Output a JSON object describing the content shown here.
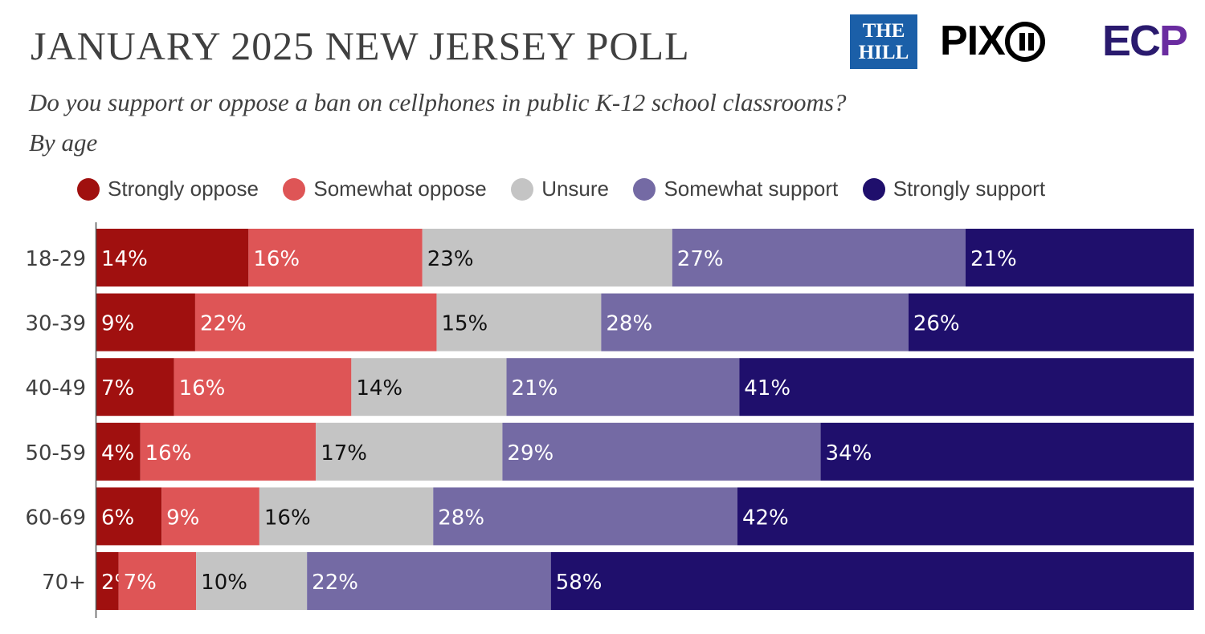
{
  "header": {
    "title": "JANUARY 2025 NEW JERSEY POLL",
    "subtitle": "Do you support or oppose a ban on cellphones in public K-12 school classrooms?",
    "subtitle2": "By age"
  },
  "logos": {
    "hill_line1": "THE",
    "hill_line2": "HILL",
    "pix": "PIX",
    "ecp_main": "EC",
    "ecp_p": "P"
  },
  "colors": {
    "strongly_oppose": "#a0100f",
    "somewhat_oppose": "#de5556",
    "unsure": "#c4c4c4",
    "somewhat_support": "#746aa4",
    "strongly_support": "#1f0f6c"
  },
  "chart_data": {
    "type": "bar",
    "orientation": "horizontal",
    "stacked": true,
    "title": "JANUARY 2025 NEW JERSEY POLL",
    "subtitle": "Do you support or oppose a ban on cellphones in public K-12 school classrooms?",
    "categories": [
      "18-29",
      "30-39",
      "40-49",
      "50-59",
      "60-69",
      "70+"
    ],
    "legend_position": "top",
    "xlim": [
      0,
      100
    ],
    "grid": false,
    "series": [
      {
        "name": "Strongly oppose",
        "color": "#a0100f",
        "text_color": "#ffffff",
        "values": [
          14,
          9,
          7,
          4,
          6,
          2
        ]
      },
      {
        "name": "Somewhat oppose",
        "color": "#de5556",
        "text_color": "#ffffff",
        "values": [
          16,
          22,
          16,
          16,
          9,
          7
        ]
      },
      {
        "name": "Unsure",
        "color": "#c4c4c4",
        "text_color": "#111111",
        "values": [
          23,
          15,
          14,
          17,
          16,
          10
        ]
      },
      {
        "name": "Somewhat support",
        "color": "#746aa4",
        "text_color": "#ffffff",
        "values": [
          27,
          28,
          21,
          29,
          28,
          22
        ]
      },
      {
        "name": "Strongly support",
        "color": "#1f0f6c",
        "text_color": "#ffffff",
        "values": [
          21,
          26,
          41,
          34,
          42,
          58
        ]
      }
    ],
    "value_labels": [
      [
        "14%",
        "16%",
        "23%",
        "27%",
        "21%"
      ],
      [
        "9%",
        "22%",
        "15%",
        "28%",
        "26%"
      ],
      [
        "7%",
        "16%",
        "14%",
        "21%",
        "41%"
      ],
      [
        "4%",
        "16%",
        "17%",
        "29%",
        "34%"
      ],
      [
        "6%",
        "9%",
        "16%",
        "28%",
        "42%"
      ],
      [
        "2%",
        "7%",
        "10%",
        "22%",
        "58%"
      ]
    ]
  }
}
